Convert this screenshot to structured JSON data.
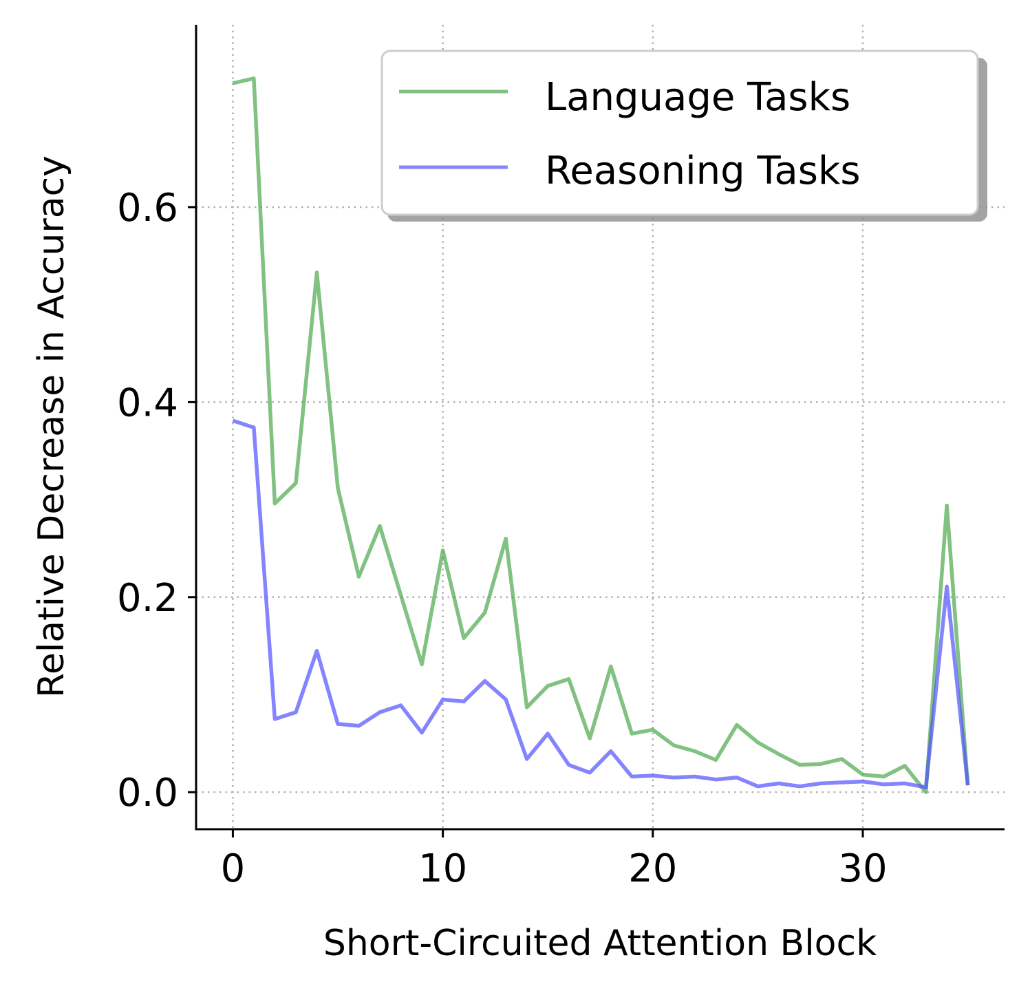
{
  "chart_data": {
    "type": "line",
    "title": "",
    "xlabel": "Short-Circuited Attention Block",
    "ylabel": "Relative Decrease in Accuracy",
    "xlim": [
      -1.75,
      36.75
    ],
    "ylim": [
      -0.038,
      0.787
    ],
    "xticks": [
      0,
      10,
      20,
      30
    ],
    "yticks": [
      0.0,
      0.2,
      0.4,
      0.6
    ],
    "xtick_labels": [
      "0",
      "10",
      "20",
      "30"
    ],
    "ytick_labels": [
      "0.0",
      "0.2",
      "0.4",
      "0.6"
    ],
    "grid": true,
    "legend_position": "top-right",
    "x": [
      0,
      1,
      2,
      3,
      4,
      5,
      6,
      7,
      8,
      9,
      10,
      11,
      12,
      13,
      14,
      15,
      16,
      17,
      18,
      19,
      20,
      21,
      22,
      23,
      24,
      25,
      26,
      27,
      28,
      29,
      30,
      31,
      32,
      33,
      34,
      35
    ],
    "series": [
      {
        "name": "Language Tasks",
        "color": "#4ca64c",
        "values": [
          0.727,
          0.732,
          0.296,
          0.317,
          0.533,
          0.312,
          0.221,
          0.273,
          0.202,
          0.131,
          0.248,
          0.158,
          0.184,
          0.26,
          0.087,
          0.109,
          0.116,
          0.055,
          0.129,
          0.06,
          0.064,
          0.048,
          0.042,
          0.033,
          0.069,
          0.051,
          0.039,
          0.028,
          0.029,
          0.034,
          0.018,
          0.016,
          0.027,
          0.0,
          0.294,
          0.007
        ]
      },
      {
        "name": "Reasoning Tasks",
        "color": "#5050ff",
        "values": [
          0.381,
          0.374,
          0.075,
          0.082,
          0.145,
          0.07,
          0.068,
          0.082,
          0.089,
          0.061,
          0.095,
          0.093,
          0.114,
          0.095,
          0.034,
          0.06,
          0.028,
          0.02,
          0.042,
          0.016,
          0.017,
          0.015,
          0.016,
          0.013,
          0.015,
          0.006,
          0.009,
          0.006,
          0.009,
          0.01,
          0.011,
          0.008,
          0.009,
          0.005,
          0.211,
          0.007
        ]
      }
    ]
  }
}
